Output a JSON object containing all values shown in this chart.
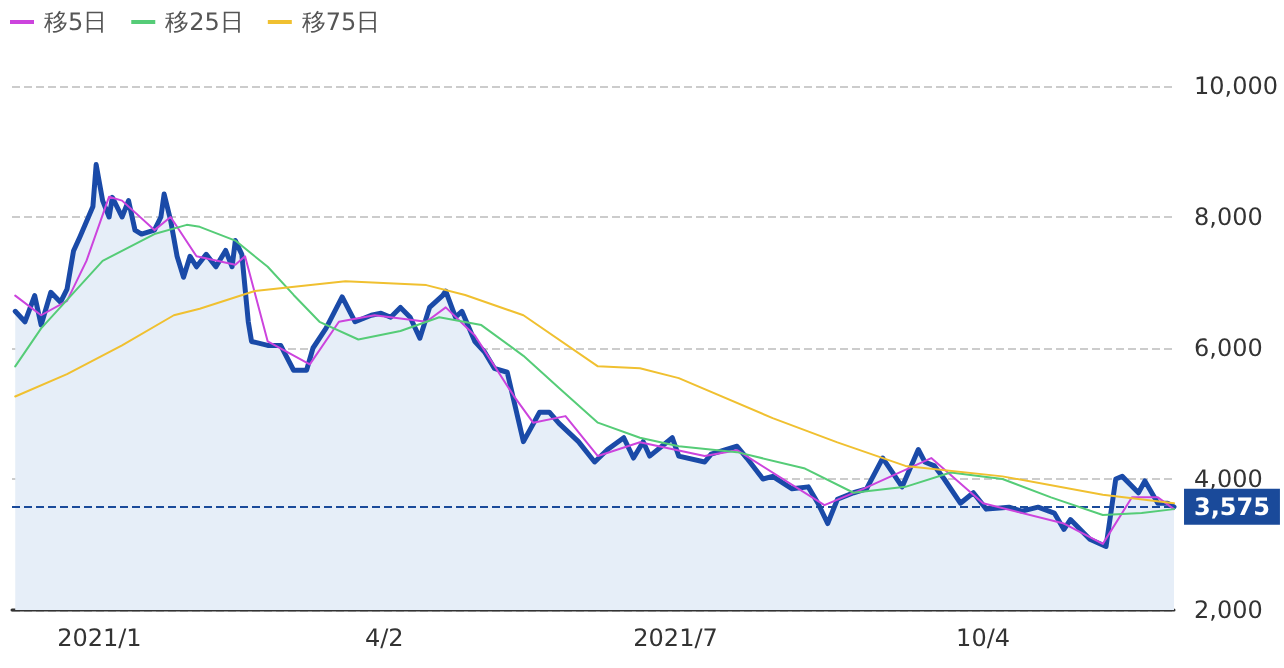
{
  "chart_data": {
    "type": "line",
    "xlim": [
      "2020-12-08",
      "2021-12-02"
    ],
    "xticks": [
      {
        "value": "2021-01-04",
        "label": "2021/1"
      },
      {
        "value": "2021-04-02",
        "label": "4/2"
      },
      {
        "value": "2021-07-01",
        "label": "2021/7"
      },
      {
        "value": "2021-10-04",
        "label": "10/4"
      }
    ],
    "ylim": [
      2000,
      10000
    ],
    "yticks": [
      {
        "value": 2000,
        "label": "2,000"
      },
      {
        "value": 4000,
        "label": "4,000"
      },
      {
        "value": 6000,
        "label": "6,000"
      },
      {
        "value": 8000,
        "label": "8,000"
      },
      {
        "value": 10000,
        "label": "10,000"
      }
    ],
    "grid": "y",
    "legend": "top left",
    "ref_lines": [
      {
        "axis": "y",
        "value": 3575,
        "label": "3,575",
        "color": "#1a4a9a",
        "line_style": "dashed"
      }
    ],
    "series": [
      {
        "type": "area",
        "color": "#1a4aa8",
        "x": [
          "2020-12-09",
          "2020-12-12",
          "2020-12-15",
          "2020-12-17",
          "2020-12-20",
          "2020-12-23",
          "2020-12-25",
          "2020-12-27",
          "2020-12-29",
          "2021-01-02",
          "2021-01-03",
          "2021-01-05",
          "2021-01-07",
          "2021-01-08",
          "2021-01-11",
          "2021-01-13",
          "2021-01-15",
          "2021-01-17",
          "2021-01-21",
          "2021-01-23",
          "2021-01-24",
          "2021-01-26",
          "2021-01-28",
          "2021-01-30",
          "2021-02-01",
          "2021-02-03",
          "2021-02-06",
          "2021-02-09",
          "2021-02-12",
          "2021-02-14",
          "2021-02-15",
          "2021-02-17",
          "2021-02-19",
          "2021-02-20",
          "2021-02-25",
          "2021-03-01",
          "2021-03-05",
          "2021-03-09",
          "2021-03-11",
          "2021-03-15",
          "2021-03-20",
          "2021-03-24",
          "2021-03-29",
          "2021-04-01",
          "2021-04-04",
          "2021-04-07",
          "2021-04-10",
          "2021-04-13",
          "2021-04-16",
          "2021-04-20",
          "2021-04-21",
          "2021-04-24",
          "2021-04-26",
          "2021-04-30",
          "2021-05-03",
          "2021-05-06",
          "2021-05-10",
          "2021-05-15",
          "2021-05-20",
          "2021-05-23",
          "2021-05-26",
          "2021-06-01",
          "2021-06-06",
          "2021-06-10",
          "2021-06-15",
          "2021-06-18",
          "2021-06-21",
          "2021-06-23",
          "2021-06-30",
          "2021-07-02",
          "2021-07-10",
          "2021-07-12",
          "2021-07-20",
          "2021-07-23",
          "2021-07-28",
          "2021-07-31",
          "2021-08-06",
          "2021-08-11",
          "2021-08-14",
          "2021-08-17",
          "2021-08-20",
          "2021-08-25",
          "2021-08-29",
          "2021-09-03",
          "2021-09-06",
          "2021-09-09",
          "2021-09-14",
          "2021-09-16",
          "2021-09-19",
          "2021-09-22",
          "2021-09-27",
          "2021-10-01",
          "2021-10-05",
          "2021-10-12",
          "2021-10-16",
          "2021-10-21",
          "2021-10-26",
          "2021-10-29",
          "2021-10-31",
          "2021-11-06",
          "2021-11-11",
          "2021-11-14",
          "2021-11-16",
          "2021-11-21",
          "2021-11-23",
          "2021-11-27",
          "2021-11-30",
          "2021-12-02"
        ],
        "values": [
          6560,
          6400,
          6800,
          6350,
          6850,
          6700,
          6900,
          7480,
          7700,
          8160,
          8800,
          8250,
          8000,
          8300,
          8000,
          8250,
          7800,
          7740,
          7800,
          8000,
          8350,
          7950,
          7400,
          7080,
          7400,
          7240,
          7430,
          7240,
          7490,
          7240,
          7640,
          7430,
          6400,
          6100,
          6040,
          6040,
          5660,
          5660,
          6000,
          6300,
          6780,
          6400,
          6500,
          6530,
          6470,
          6620,
          6470,
          6150,
          6620,
          6800,
          6870,
          6470,
          6560,
          6100,
          5940,
          5690,
          5630,
          4570,
          5020,
          5020,
          4850,
          4570,
          4260,
          4450,
          4630,
          4320,
          4570,
          4350,
          4630,
          4350,
          4260,
          4380,
          4500,
          4320,
          4000,
          4040,
          3850,
          3880,
          3630,
          3320,
          3690,
          3790,
          3850,
          4320,
          4100,
          3880,
          4450,
          4260,
          4200,
          4000,
          3630,
          3790,
          3540,
          3570,
          3510,
          3570,
          3480,
          3230,
          3380,
          3080,
          2970,
          4000,
          4040,
          3790,
          3970,
          3630,
          3630,
          3575
        ]
      },
      {
        "name": "移5日",
        "color": "#cc44dd",
        "x": [
          "2020-12-09",
          "2020-12-17",
          "2020-12-25",
          "2020-12-31",
          "2021-01-07",
          "2021-01-11",
          "2021-01-21",
          "2021-01-26",
          "2021-02-03",
          "2021-02-15",
          "2021-02-18",
          "2021-02-25",
          "2021-03-10",
          "2021-03-19",
          "2021-03-30",
          "2021-04-15",
          "2021-04-21",
          "2021-04-30",
          "2021-05-12",
          "2021-05-18",
          "2021-05-28",
          "2021-06-07",
          "2021-06-20",
          "2021-07-10",
          "2021-07-20",
          "2021-08-16",
          "2021-08-28",
          "2021-09-18",
          "2021-10-04",
          "2021-10-29",
          "2021-11-10",
          "2021-11-19",
          "2021-11-27",
          "2021-12-02"
        ],
        "values": [
          6800,
          6500,
          6720,
          7330,
          8310,
          8250,
          7800,
          8000,
          7400,
          7270,
          7400,
          6100,
          5750,
          6400,
          6500,
          6400,
          6620,
          6190,
          5270,
          4860,
          4960,
          4350,
          4560,
          4350,
          4440,
          3600,
          3850,
          4320,
          3630,
          3320,
          3010,
          3720,
          3720,
          3540
        ]
      },
      {
        "name": "移25日",
        "color": "#55cc77",
        "x": [
          "2020-12-09",
          "2020-12-17",
          "2021-01-05",
          "2021-01-21",
          "2021-01-31",
          "2021-02-04",
          "2021-02-15",
          "2021-02-25",
          "2021-03-05",
          "2021-03-13",
          "2021-03-25",
          "2021-04-07",
          "2021-04-19",
          "2021-05-02",
          "2021-05-15",
          "2021-05-26",
          "2021-06-07",
          "2021-06-20",
          "2021-07-02",
          "2021-07-20",
          "2021-08-10",
          "2021-08-25",
          "2021-09-10",
          "2021-09-24",
          "2021-10-10",
          "2021-10-25",
          "2021-11-10",
          "2021-11-22",
          "2021-12-02"
        ],
        "values": [
          5720,
          6300,
          7330,
          7740,
          7880,
          7850,
          7640,
          7240,
          6810,
          6400,
          6130,
          6260,
          6470,
          6350,
          5880,
          5390,
          4860,
          4630,
          4500,
          4410,
          4160,
          3790,
          3880,
          4100,
          4000,
          3720,
          3450,
          3480,
          3540
        ]
      },
      {
        "name": "移75日",
        "color": "#f0c030",
        "x": [
          "2020-12-09",
          "2020-12-25",
          "2021-01-11",
          "2021-01-27",
          "2021-02-04",
          "2021-02-21",
          "2021-03-21",
          "2021-04-15",
          "2021-04-27",
          "2021-05-15",
          "2021-06-07",
          "2021-06-20",
          "2021-07-02",
          "2021-07-31",
          "2021-08-20",
          "2021-09-10",
          "2021-10-10",
          "2021-11-10",
          "2021-12-02"
        ],
        "values": [
          5260,
          5600,
          6040,
          6500,
          6600,
          6870,
          7020,
          6960,
          6810,
          6500,
          5720,
          5690,
          5540,
          4930,
          4560,
          4200,
          4040,
          3760,
          3630
        ]
      }
    ]
  }
}
